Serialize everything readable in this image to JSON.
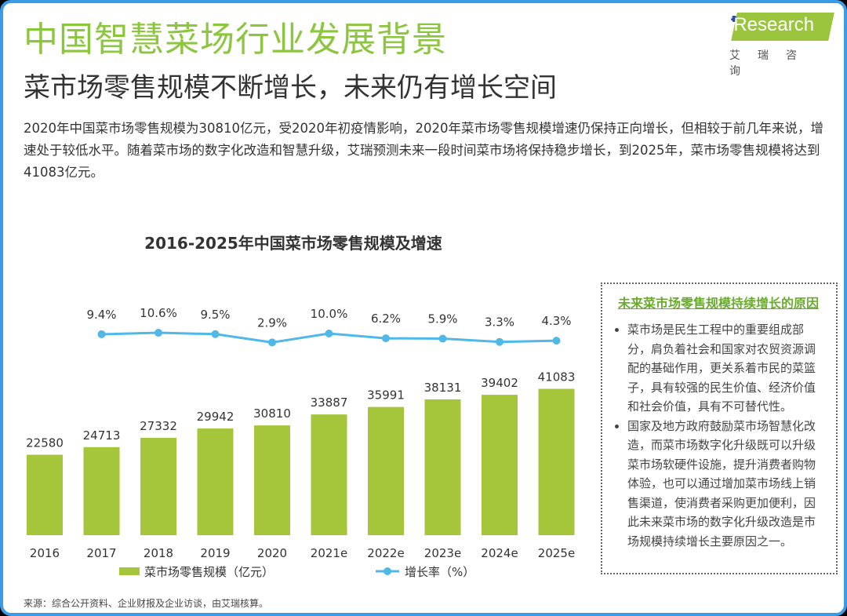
{
  "header": {
    "title": "中国智慧菜场行业发展背景",
    "subtitle": "菜市场零售规模不断增长，未来仍有增长空间",
    "paragraph": "2020年中国菜市场零售规模为30810亿元，受2020年初疫情影响，2020年菜市场零售规模增速仍保持正向增长，但相较于前几年来说，增速处于较低水平。随着菜市场的数字化改造和智慧升级，艾瑞预测未来一段时间菜市场将保持稳步增长，到2025年，菜市场零售规模将达到41083亿元。"
  },
  "logo": {
    "text": "iResearch",
    "cn": "艾瑞咨询"
  },
  "chart_data": {
    "type": "bar+line",
    "title": "2016-2025年中国菜市场零售规模及增速",
    "categories": [
      "2016",
      "2017",
      "2018",
      "2019",
      "2020",
      "2021e",
      "2022e",
      "2023e",
      "2024e",
      "2025e"
    ],
    "series": [
      {
        "name": "菜市场零售规模（亿元）",
        "type": "bar",
        "color": "#a5c63b",
        "values": [
          22580,
          24713,
          27332,
          29942,
          30810,
          33887,
          35991,
          38131,
          39402,
          41083
        ]
      },
      {
        "name": "增长率（%）",
        "type": "line",
        "color": "#4fb8e6",
        "values": [
          null,
          9.4,
          10.6,
          9.5,
          2.9,
          10.0,
          6.2,
          5.9,
          3.3,
          4.3
        ],
        "labels": [
          "",
          "9.4%",
          "10.6%",
          "9.5%",
          "2.9%",
          "10.0%",
          "6.2%",
          "5.9%",
          "3.3%",
          "4.3%"
        ]
      }
    ],
    "legend": "bottom"
  },
  "sidebar": {
    "title": "未来菜市场零售规模持续增长的原因",
    "items": [
      "菜市场是民生工程中的重要组成部分，肩负着社会和国家对农贸资源调配的基础作用，更关系着市民的菜篮子，具有较强的民生价值、经济价值和社会价值，具有不可替代性。",
      "国家及地方政府鼓励菜市场智慧化改造，而菜市场数字化升级既可以升级菜市场软硬件设施，提升消费者购物体验，也可以通过增加菜市场线上销售渠道，使消费者采购更加便利，因此未来菜市场的数字化升级改造是市场规模持续增长主要原因之一。"
    ]
  },
  "source": "来源：综合公开资料、企业财报及企业访谈，由艾瑞核算。"
}
